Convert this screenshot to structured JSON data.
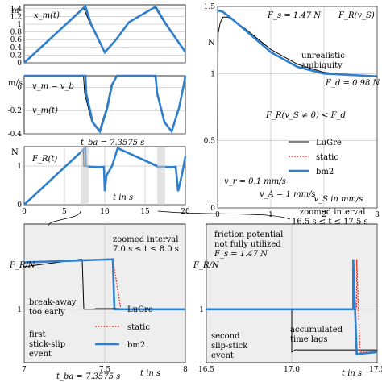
{
  "chart_data": [
    {
      "id": "xm",
      "type": "line",
      "ylabel": "x_m(t)",
      "yunit": "m",
      "xlim": [
        0,
        20
      ],
      "ylim": [
        0,
        1.5
      ],
      "yticks": [
        "0",
        "0.2",
        "0.4",
        "0.6",
        "0.8",
        "1",
        "1.2",
        "1.4"
      ],
      "legend": "none",
      "grid": true,
      "series": [
        {
          "name": "LuGre",
          "color": "#000000",
          "x": [
            0,
            7.36,
            8.2,
            10,
            11.4,
            13,
            16.2,
            17.5,
            20
          ],
          "y": [
            0,
            1.44,
            1.0,
            0.28,
            0.6,
            1.05,
            1.44,
            1.0,
            0.28
          ]
        },
        {
          "name": "static",
          "color": "#e03020",
          "x": [
            0,
            7.6,
            8.3,
            10,
            11.4,
            13,
            16.3,
            17.6,
            20
          ],
          "y": [
            0,
            1.46,
            1.0,
            0.27,
            0.6,
            1.05,
            1.45,
            1.0,
            0.28
          ]
        },
        {
          "name": "bm2",
          "color": "#2f7fcf",
          "x": [
            0,
            7.6,
            8.3,
            10,
            11.4,
            13,
            16.3,
            17.6,
            20
          ],
          "y": [
            0,
            1.46,
            1.0,
            0.27,
            0.6,
            1.05,
            1.45,
            1.0,
            0.28
          ]
        }
      ]
    },
    {
      "id": "vm",
      "type": "line",
      "ylabel": "v_m(t)",
      "yunit": "m/s",
      "eq_label": "v_m = v_b",
      "xlim": [
        0,
        20
      ],
      "ylim": [
        -0.4,
        0.1
      ],
      "yticks": [
        "0",
        "-0.2",
        "-0.4"
      ],
      "grid": true,
      "series": [
        {
          "name": "LuGre",
          "color": "#000000",
          "x": [
            0,
            7.36,
            7.5,
            8.4,
            9.3,
            10.2,
            10.8,
            11.5,
            16.2,
            16.5,
            17.4,
            18.3,
            19.2,
            19.8,
            20
          ],
          "y": [
            0.1,
            0.1,
            -0.05,
            -0.3,
            -0.38,
            -0.18,
            0.02,
            0.1,
            0.1,
            -0.05,
            -0.3,
            -0.38,
            -0.18,
            0.02,
            0.1
          ]
        },
        {
          "name": "bm2",
          "color": "#2f7fcf",
          "x": [
            0,
            7.6,
            7.7,
            8.5,
            9.4,
            10.3,
            10.9,
            11.5,
            16.3,
            16.5,
            17.4,
            18.3,
            19.2,
            19.8,
            20
          ],
          "y": [
            0.1,
            0.1,
            -0.05,
            -0.3,
            -0.38,
            -0.18,
            0.02,
            0.1,
            0.1,
            -0.05,
            -0.3,
            -0.38,
            -0.18,
            0.02,
            0.1
          ]
        }
      ]
    },
    {
      "id": "fr",
      "type": "line",
      "ylabel": "F_R(t)",
      "yunit": "N",
      "xlabel": "t in s",
      "xlim": [
        0,
        20
      ],
      "ylim": [
        0,
        1.5
      ],
      "xticks": [
        "0",
        "5",
        "10",
        "15",
        "20"
      ],
      "yticks": [
        "0",
        "1"
      ],
      "tba_label": "t_ba = 7.3575 s",
      "grid": true,
      "series": [
        {
          "name": "LuGre",
          "color": "#000000",
          "x": [
            0,
            7.36,
            7.4,
            8.3,
            9.3,
            9.9,
            10.0,
            10.2,
            10.9,
            11.6,
            16.3,
            16.5,
            17.2,
            18.2,
            18.8,
            19.1,
            19.6,
            20
          ],
          "y": [
            0,
            1.44,
            1.0,
            0.98,
            0.97,
            0.98,
            0.35,
            0.75,
            1.0,
            1.46,
            1.0,
            0.98,
            0.98,
            0.97,
            0.98,
            0.35,
            0.8,
            1.25
          ]
        },
        {
          "name": "bm2",
          "color": "#2f7fcf",
          "x": [
            0,
            7.6,
            7.65,
            8.3,
            9.3,
            9.9,
            10.0,
            10.2,
            10.9,
            11.6,
            16.5,
            16.6,
            17.2,
            18.2,
            18.8,
            19.1,
            19.6,
            20
          ],
          "y": [
            0,
            1.47,
            1.0,
            0.98,
            0.97,
            0.98,
            0.35,
            0.75,
            1.0,
            1.46,
            1.0,
            0.98,
            0.98,
            0.97,
            0.98,
            0.35,
            0.8,
            1.25
          ]
        }
      ]
    },
    {
      "id": "frvs",
      "type": "line",
      "title": "F_R(v_S)",
      "xlabel": "v_S in mm/s",
      "yunit": "N",
      "xlim": [
        0,
        3
      ],
      "ylim": [
        0,
        1.5
      ],
      "xticks": [
        "0",
        "1",
        "2",
        "3"
      ],
      "yticks": [
        "0",
        "0.5",
        "1",
        "1.5"
      ],
      "grid": true,
      "legend": "lower-right",
      "series": [
        {
          "name": "LuGre",
          "color": "#000000",
          "x": [
            0,
            0.01,
            0.05,
            0.1,
            0.2,
            0.5,
            1.0,
            1.5,
            2.0,
            2.5,
            3.0
          ],
          "y": [
            0.5,
            1.3,
            1.38,
            1.42,
            1.42,
            1.34,
            1.18,
            1.07,
            1.01,
            0.99,
            0.98
          ]
        },
        {
          "name": "static",
          "color": "#e03020",
          "x": [
            0,
            0.01,
            0.1,
            0.2,
            0.5,
            1.0,
            1.5,
            2.0,
            2.5,
            3.0
          ],
          "y": [
            1.47,
            1.47,
            1.46,
            1.43,
            1.33,
            1.16,
            1.05,
            1.0,
            0.99,
            0.98
          ]
        },
        {
          "name": "bm2",
          "color": "#2f7fcf",
          "x": [
            0,
            0.01,
            0.1,
            0.2,
            0.5,
            1.0,
            1.5,
            2.0,
            2.5,
            3.0
          ],
          "y": [
            1.47,
            1.47,
            1.46,
            1.43,
            1.33,
            1.16,
            1.05,
            1.0,
            0.99,
            0.98
          ]
        }
      ]
    },
    {
      "id": "zoom1",
      "type": "line",
      "ylabel": "F_R/N",
      "xlabel": "t in s",
      "xlim": [
        7,
        8
      ],
      "ylim": [
        0.5,
        1.8
      ],
      "xticks": [
        "7",
        "7.5",
        "8"
      ],
      "yticks": [
        "1"
      ],
      "tba_label": "t_ba = 7.3575 s",
      "grid": true,
      "legend": "lower-right",
      "series": [
        {
          "name": "LuGre",
          "color": "#000000",
          "x": [
            7.0,
            7.35,
            7.36,
            7.37,
            8.0
          ],
          "y": [
            1.4,
            1.47,
            1.47,
            1.0,
            1.0
          ]
        },
        {
          "name": "static",
          "color": "#e03020",
          "x": [
            7.0,
            7.55,
            7.55,
            7.6,
            8.0
          ],
          "y": [
            1.44,
            1.47,
            1.47,
            1.0,
            1.0
          ]
        },
        {
          "name": "bm2",
          "color": "#2f7fcf",
          "x": [
            7.0,
            7.55,
            7.55,
            7.56,
            8.0
          ],
          "y": [
            1.44,
            1.47,
            1.47,
            1.0,
            1.0
          ]
        }
      ]
    },
    {
      "id": "zoom2",
      "type": "line",
      "ylabel": "F_R/N",
      "xlabel": "t in s",
      "xlim": [
        16.5,
        17.5
      ],
      "ylim": [
        0.5,
        1.8
      ],
      "xticks": [
        "16.5",
        "17.0",
        "17.5"
      ],
      "yticks": [
        "1"
      ],
      "grid": true,
      "series": [
        {
          "name": "LuGre",
          "color": "#000000",
          "x": [
            16.5,
            17.0,
            17.0,
            17.02,
            17.5
          ],
          "y": [
            1.0,
            1.0,
            0.6,
            0.62,
            0.62
          ]
        },
        {
          "name": "static",
          "color": "#e03020",
          "x": [
            16.5,
            17.38,
            17.38,
            17.4,
            17.5
          ],
          "y": [
            1.0,
            1.0,
            1.47,
            0.6,
            0.6
          ]
        },
        {
          "name": "bm2",
          "color": "#2f7fcf",
          "x": [
            16.5,
            17.36,
            17.36,
            17.38,
            17.5
          ],
          "y": [
            1.0,
            1.0,
            1.47,
            0.58,
            0.6
          ]
        }
      ]
    }
  ],
  "annotations": {
    "fs": "F_s = 1.47 N",
    "fd": "F_d = 0.98 N",
    "unrealistic": [
      "unrealistic",
      "ambiguity"
    ],
    "ineq": "F_R(v_S ≠ 0) < F_d",
    "vr": "v_r = 0.1 mm/s",
    "va": "v_A = 1 mm/s",
    "zoom1_header": [
      "zoomed interval",
      "7.0 s ≤ t ≤ 8.0 s"
    ],
    "zoom2_header": [
      "zoomed interval",
      "16.5 s ≤ t ≤ 17.5 s"
    ],
    "breakaway": [
      "break-away",
      "too early"
    ],
    "first_event": [
      "first",
      "stick-slip",
      "event"
    ],
    "second_event": [
      "second",
      "slip-stick",
      "event"
    ],
    "friction_potential": [
      "friction potential",
      "not fully utilized",
      "F_s = 1.47 N"
    ],
    "accumulated": [
      "accumulated",
      "time lags"
    ]
  }
}
